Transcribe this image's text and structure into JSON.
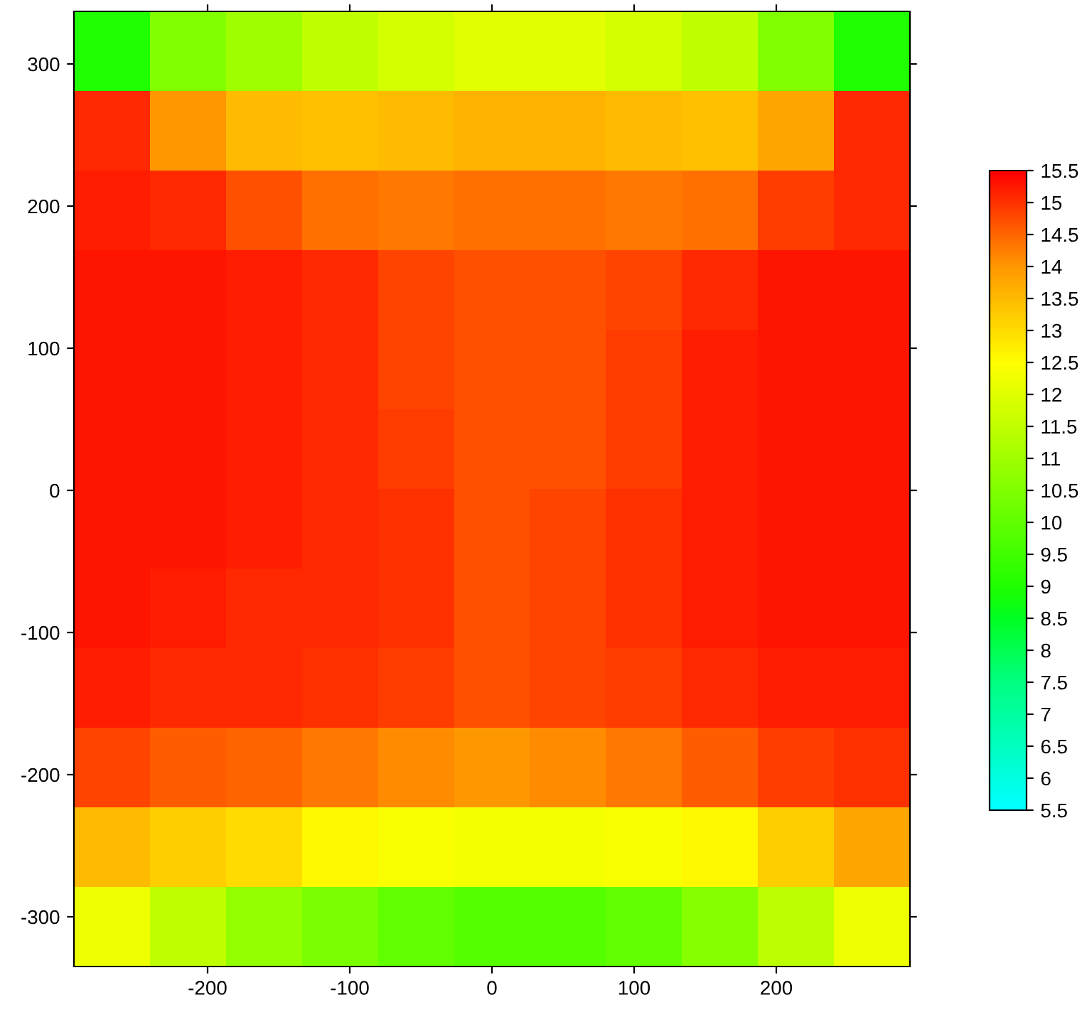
{
  "chart_data": {
    "type": "heatmap",
    "x": [
      -267,
      -214,
      -160,
      -107,
      -53,
      0,
      53,
      107,
      160,
      214,
      267
    ],
    "y": [
      309,
      253,
      197,
      141,
      85,
      29,
      -27,
      -83,
      -139,
      -195,
      -251,
      -307
    ],
    "cells": [
      [
        9,
        10.5,
        11,
        11.5,
        11.8,
        12,
        12,
        11.8,
        11.5,
        10.5,
        9
      ],
      [
        15.1,
        14,
        13.5,
        13.4,
        13.5,
        13.6,
        13.6,
        13.5,
        13.4,
        13.8,
        15.1
      ],
      [
        15.2,
        15.1,
        14.7,
        14.4,
        14.3,
        14.4,
        14.4,
        14.3,
        14.4,
        14.9,
        15.1
      ],
      [
        15.3,
        15.3,
        15.2,
        15.1,
        14.8,
        14.7,
        14.7,
        14.8,
        15.1,
        15.3,
        15.3
      ],
      [
        15.3,
        15.3,
        15.2,
        15.1,
        14.8,
        14.7,
        14.7,
        14.9,
        15.2,
        15.3,
        15.3
      ],
      [
        15.3,
        15.3,
        15.2,
        15.1,
        14.9,
        14.7,
        14.7,
        14.9,
        15.2,
        15.3,
        15.3
      ],
      [
        15.3,
        15.3,
        15.2,
        15.1,
        15.0,
        14.7,
        14.8,
        15.0,
        15.2,
        15.3,
        15.3
      ],
      [
        15.3,
        15.2,
        15.1,
        15.1,
        15.0,
        14.7,
        14.8,
        15.0,
        15.2,
        15.3,
        15.3
      ],
      [
        15.2,
        15.1,
        15.1,
        15.0,
        14.9,
        14.7,
        14.8,
        14.9,
        15.1,
        15.2,
        15.2
      ],
      [
        14.8,
        14.6,
        14.5,
        14.3,
        14.1,
        14.0,
        14.1,
        14.3,
        14.6,
        14.9,
        15.0
      ],
      [
        13.5,
        13.2,
        13.0,
        12.6,
        12.4,
        12.3,
        12.3,
        12.4,
        12.6,
        13.2,
        13.8
      ],
      [
        12.2,
        11.5,
        10.8,
        10.4,
        10.0,
        9.8,
        9.8,
        10.0,
        10.6,
        11.4,
        12.2
      ]
    ],
    "xlim": [
      -294,
      294
    ],
    "ylim": [
      -335,
      337
    ],
    "xticks": [
      -200,
      -100,
      0,
      100,
      200
    ],
    "yticks": [
      -300,
      -200,
      -100,
      0,
      100,
      200,
      300
    ],
    "clim": [
      5.5,
      15.5
    ],
    "cticks": [
      5.5,
      6,
      6.5,
      7,
      7.5,
      8,
      8.5,
      9,
      9.5,
      10,
      10.5,
      11,
      11.5,
      12,
      12.5,
      13,
      13.5,
      14,
      14.5,
      15,
      15.5
    ],
    "colors": [
      "#00ffff",
      "#00ffe0",
      "#00ffbf",
      "#00ff9f",
      "#00ff7f",
      "#00ff50",
      "#00ff20",
      "#20ff00",
      "#40ff00",
      "#60ff00",
      "#80ff00",
      "#a0ff00",
      "#c0ff00",
      "#e0ff00",
      "#ffff00",
      "#ffdd00",
      "#ffbb00",
      "#ff9900",
      "#ff6600",
      "#ff3300",
      "#ff0000"
    ],
    "grid": false
  }
}
